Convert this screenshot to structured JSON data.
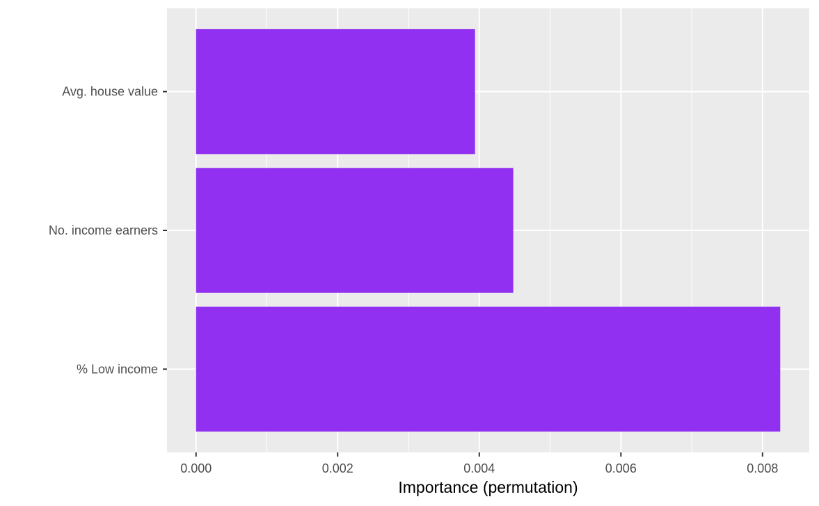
{
  "chart_data": {
    "type": "bar",
    "orientation": "horizontal",
    "categories": [
      "% Low income",
      "No. income earners",
      "Avg. house value"
    ],
    "values": [
      0.00825,
      0.00448,
      0.00394
    ],
    "title": "",
    "xlabel": "Importance (permutation)",
    "ylabel": "",
    "xlim": [
      -0.00041,
      0.00866
    ],
    "x_ticks": [
      0.0,
      0.002,
      0.004,
      0.006,
      0.008
    ],
    "x_tick_labels": [
      "0.000",
      "0.002",
      "0.004",
      "0.006",
      "0.008"
    ],
    "grid": true,
    "legend": "none",
    "colors": {
      "bar": "#9130F0",
      "panel_background": "#EBEBEB",
      "grid": "#FFFFFF",
      "tick_text": "#4D4D4D",
      "axis_title": "#000000"
    }
  }
}
